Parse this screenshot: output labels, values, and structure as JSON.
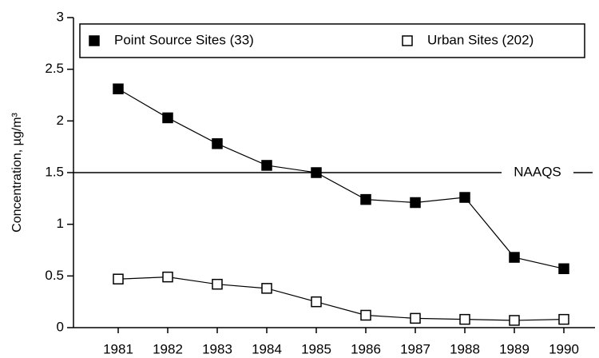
{
  "chart_data": {
    "type": "line",
    "y_label": "Concentration, µg/m³",
    "categories": [
      "1981",
      "1982",
      "1983",
      "1984",
      "1985",
      "1986",
      "1987",
      "1988",
      "1989",
      "1990"
    ],
    "series": [
      {
        "name": "Point Source Sites (33)",
        "color": "#000000",
        "marker": "filled-square",
        "values": [
          2.31,
          2.03,
          1.78,
          1.57,
          1.5,
          1.24,
          1.21,
          1.26,
          0.68,
          0.57
        ]
      },
      {
        "name": "Urban Sites (202)",
        "color": "#000000",
        "marker": "open-square",
        "values": [
          0.47,
          0.49,
          0.42,
          0.38,
          0.25,
          0.12,
          0.09,
          0.08,
          0.07,
          0.08
        ]
      }
    ],
    "reference_line": {
      "value": 1.5,
      "label": "NAAQS"
    },
    "ylim": [
      0,
      3
    ],
    "yticks": [
      0,
      0.5,
      1,
      1.5,
      2,
      2.5,
      3
    ],
    "grid": false,
    "legend": "top"
  }
}
